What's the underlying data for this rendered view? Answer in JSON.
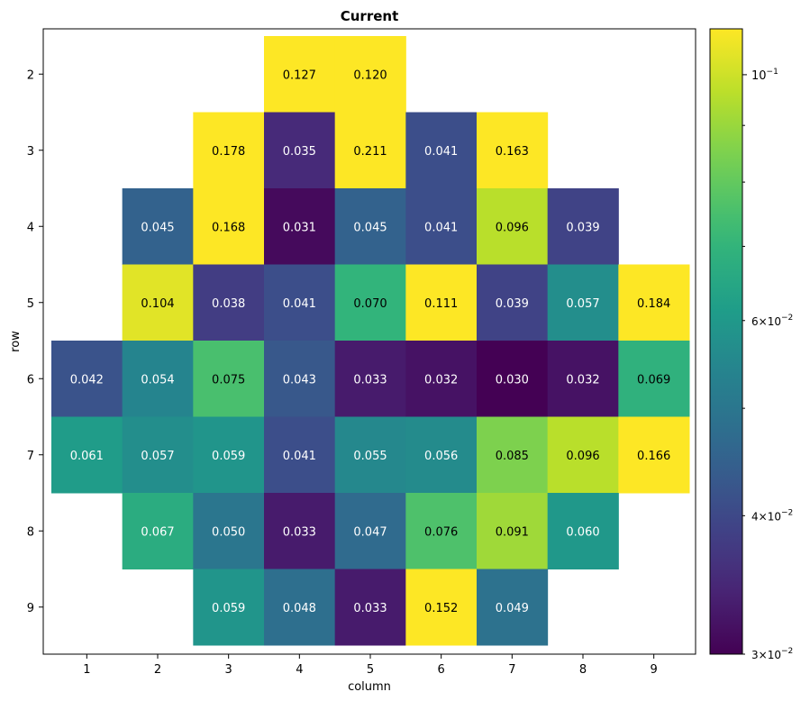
{
  "chart_data": {
    "type": "heatmap",
    "title": "Current",
    "xlabel": "column",
    "ylabel": "row",
    "columns": [
      1,
      2,
      3,
      4,
      5,
      6,
      7,
      8,
      9
    ],
    "rows": [
      2,
      3,
      4,
      5,
      6,
      7,
      8,
      9
    ],
    "xtick_labels": [
      "1",
      "2",
      "3",
      "4",
      "5",
      "6",
      "7",
      "8",
      "9"
    ],
    "ytick_labels": [
      "2",
      "3",
      "4",
      "5",
      "6",
      "7",
      "8",
      "9"
    ],
    "cells": [
      {
        "row": 2,
        "col": 4,
        "value": 0.127,
        "label": "0.127"
      },
      {
        "row": 2,
        "col": 5,
        "value": 0.12,
        "label": "0.120"
      },
      {
        "row": 3,
        "col": 3,
        "value": 0.178,
        "label": "0.178"
      },
      {
        "row": 3,
        "col": 4,
        "value": 0.035,
        "label": "0.035"
      },
      {
        "row": 3,
        "col": 5,
        "value": 0.211,
        "label": "0.211"
      },
      {
        "row": 3,
        "col": 6,
        "value": 0.041,
        "label": "0.041"
      },
      {
        "row": 3,
        "col": 7,
        "value": 0.163,
        "label": "0.163"
      },
      {
        "row": 4,
        "col": 2,
        "value": 0.045,
        "label": "0.045"
      },
      {
        "row": 4,
        "col": 3,
        "value": 0.168,
        "label": "0.168"
      },
      {
        "row": 4,
        "col": 4,
        "value": 0.031,
        "label": "0.031"
      },
      {
        "row": 4,
        "col": 5,
        "value": 0.045,
        "label": "0.045"
      },
      {
        "row": 4,
        "col": 6,
        "value": 0.041,
        "label": "0.041"
      },
      {
        "row": 4,
        "col": 7,
        "value": 0.096,
        "label": "0.096"
      },
      {
        "row": 4,
        "col": 8,
        "value": 0.039,
        "label": "0.039"
      },
      {
        "row": 5,
        "col": 2,
        "value": 0.104,
        "label": "0.104"
      },
      {
        "row": 5,
        "col": 3,
        "value": 0.038,
        "label": "0.038"
      },
      {
        "row": 5,
        "col": 4,
        "value": 0.041,
        "label": "0.041"
      },
      {
        "row": 5,
        "col": 5,
        "value": 0.07,
        "label": "0.070"
      },
      {
        "row": 5,
        "col": 6,
        "value": 0.111,
        "label": "0.111"
      },
      {
        "row": 5,
        "col": 7,
        "value": 0.039,
        "label": "0.039"
      },
      {
        "row": 5,
        "col": 8,
        "value": 0.057,
        "label": "0.057"
      },
      {
        "row": 5,
        "col": 9,
        "value": 0.184,
        "label": "0.184"
      },
      {
        "row": 6,
        "col": 1,
        "value": 0.042,
        "label": "0.042"
      },
      {
        "row": 6,
        "col": 2,
        "value": 0.054,
        "label": "0.054"
      },
      {
        "row": 6,
        "col": 3,
        "value": 0.075,
        "label": "0.075"
      },
      {
        "row": 6,
        "col": 4,
        "value": 0.043,
        "label": "0.043"
      },
      {
        "row": 6,
        "col": 5,
        "value": 0.033,
        "label": "0.033"
      },
      {
        "row": 6,
        "col": 6,
        "value": 0.032,
        "label": "0.032"
      },
      {
        "row": 6,
        "col": 7,
        "value": 0.03,
        "label": "0.030"
      },
      {
        "row": 6,
        "col": 8,
        "value": 0.032,
        "label": "0.032"
      },
      {
        "row": 6,
        "col": 9,
        "value": 0.069,
        "label": "0.069"
      },
      {
        "row": 7,
        "col": 1,
        "value": 0.061,
        "label": "0.061"
      },
      {
        "row": 7,
        "col": 2,
        "value": 0.057,
        "label": "0.057"
      },
      {
        "row": 7,
        "col": 3,
        "value": 0.059,
        "label": "0.059"
      },
      {
        "row": 7,
        "col": 4,
        "value": 0.041,
        "label": "0.041"
      },
      {
        "row": 7,
        "col": 5,
        "value": 0.055,
        "label": "0.055"
      },
      {
        "row": 7,
        "col": 6,
        "value": 0.056,
        "label": "0.056"
      },
      {
        "row": 7,
        "col": 7,
        "value": 0.085,
        "label": "0.085"
      },
      {
        "row": 7,
        "col": 8,
        "value": 0.096,
        "label": "0.096"
      },
      {
        "row": 7,
        "col": 9,
        "value": 0.166,
        "label": "0.166"
      },
      {
        "row": 8,
        "col": 2,
        "value": 0.067,
        "label": "0.067"
      },
      {
        "row": 8,
        "col": 3,
        "value": 0.05,
        "label": "0.050"
      },
      {
        "row": 8,
        "col": 4,
        "value": 0.033,
        "label": "0.033"
      },
      {
        "row": 8,
        "col": 5,
        "value": 0.047,
        "label": "0.047"
      },
      {
        "row": 8,
        "col": 6,
        "value": 0.076,
        "label": "0.076"
      },
      {
        "row": 8,
        "col": 7,
        "value": 0.091,
        "label": "0.091"
      },
      {
        "row": 8,
        "col": 8,
        "value": 0.06,
        "label": "0.060"
      },
      {
        "row": 9,
        "col": 3,
        "value": 0.059,
        "label": "0.059"
      },
      {
        "row": 9,
        "col": 4,
        "value": 0.048,
        "label": "0.048"
      },
      {
        "row": 9,
        "col": 5,
        "value": 0.033,
        "label": "0.033"
      },
      {
        "row": 9,
        "col": 6,
        "value": 0.152,
        "label": "0.152"
      },
      {
        "row": 9,
        "col": 7,
        "value": 0.049,
        "label": "0.049"
      }
    ],
    "colorbar": {
      "scale": "log",
      "vmin": 0.03,
      "vmax": 0.11,
      "colormap": "viridis",
      "major_ticks": [
        {
          "value": 0.1,
          "base": "10",
          "exp": "−1"
        }
      ],
      "labeled_minor_ticks": [
        {
          "value": 0.06,
          "mantissa": "6",
          "times": "×",
          "base": "10",
          "exp": "−2"
        },
        {
          "value": 0.04,
          "mantissa": "4",
          "times": "×",
          "base": "10",
          "exp": "−2"
        },
        {
          "value": 0.03,
          "mantissa": "3",
          "times": "×",
          "base": "10",
          "exp": "−2"
        }
      ],
      "unlabeled_minor_ticks": [
        0.05,
        0.07,
        0.08,
        0.09
      ]
    },
    "colors": {
      "viridis": [
        "#440154",
        "#482878",
        "#3e4989",
        "#31688e",
        "#26828e",
        "#1f9e89",
        "#35b779",
        "#6ece58",
        "#b5de2b",
        "#fde725"
      ],
      "text_dark": "#000000",
      "text_light": "#ffffff"
    }
  }
}
